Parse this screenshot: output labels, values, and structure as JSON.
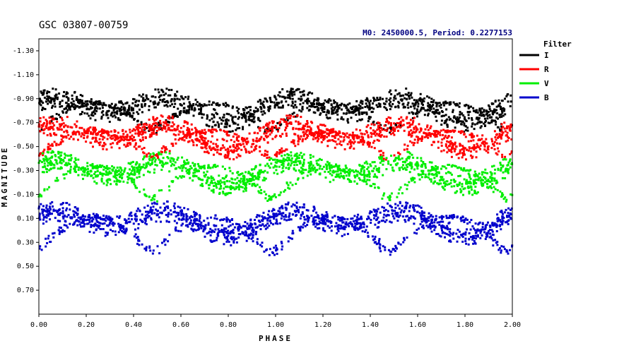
{
  "chart_data": {
    "type": "scatter",
    "title": "GSC 03807-00759",
    "subtitle": "M0: 2450000.5, Period: 0.2277153",
    "xlabel": "PHASE",
    "ylabel": "MAGNITUDE",
    "xlim": [
      0,
      2
    ],
    "ylim": [
      -1.4,
      0.9
    ],
    "y_inverted": true,
    "xticks": [
      "0.00",
      "0.20",
      "0.40",
      "0.60",
      "0.80",
      "1.00",
      "1.20",
      "1.40",
      "1.60",
      "1.80",
      "2.00"
    ],
    "yticks": [
      "-1.30",
      "-1.10",
      "-0.90",
      "-0.70",
      "-0.50",
      "-0.30",
      "-0.10",
      "0.10",
      "0.30",
      "0.50",
      "0.70"
    ],
    "grid": false,
    "legend": {
      "title": "Filter",
      "position": "right"
    },
    "series": [
      {
        "name": "I",
        "color": "#000000",
        "base": -0.85,
        "amp1": 0.08,
        "amp2": 0.04,
        "low_branch": -0.62
      },
      {
        "name": "R",
        "color": "#ff0000",
        "base": -0.62,
        "amp1": 0.08,
        "amp2": 0.04,
        "low_branch": -0.4
      },
      {
        "name": "V",
        "color": "#00ee00",
        "base": -0.32,
        "amp1": 0.08,
        "amp2": 0.04,
        "low_branch": -0.05
      },
      {
        "name": "B",
        "color": "#0000cc",
        "base": 0.1,
        "amp1": 0.08,
        "amp2": 0.04,
        "low_branch": 0.4
      }
    ]
  }
}
